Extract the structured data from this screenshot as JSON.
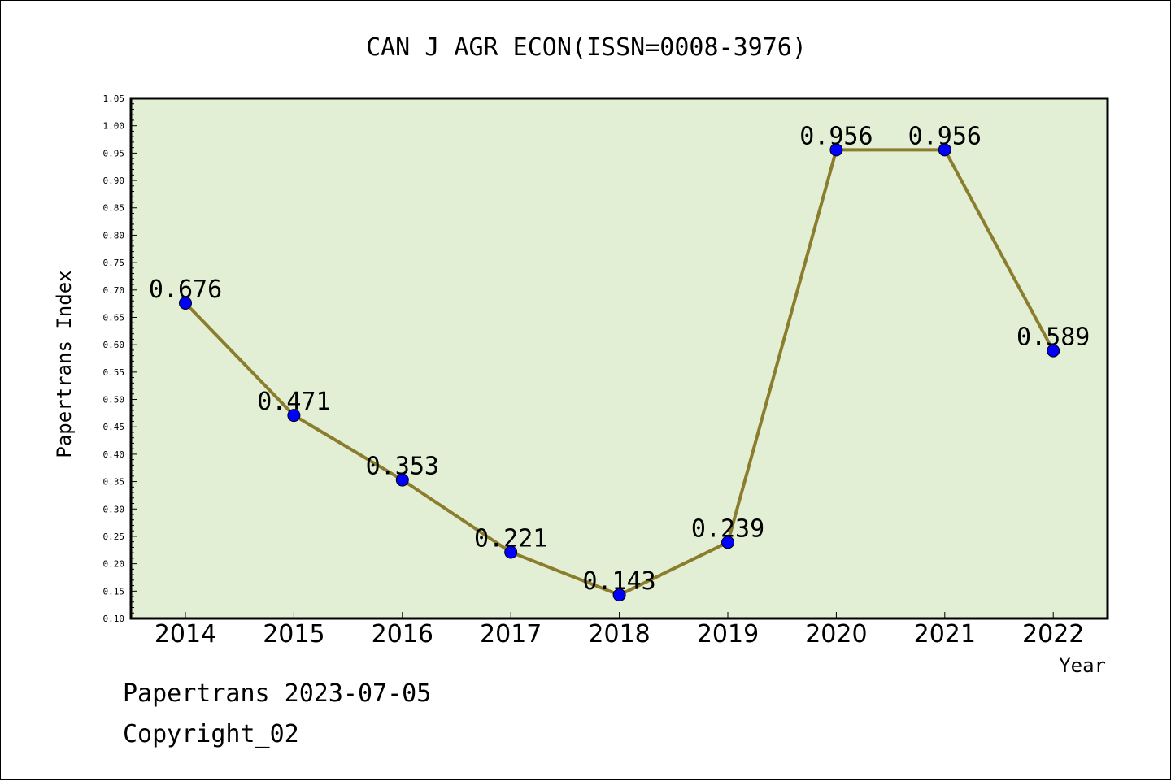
{
  "footer": {
    "line1": "Papertrans 2023-07-05",
    "line2": "Copyright_02"
  },
  "colors": {
    "plot_bg": "#e2efd5",
    "line": "#8b7d2e",
    "marker": "#0000ff",
    "text": "#000000"
  },
  "chart_data": {
    "type": "line",
    "title": "CAN J AGR ECON(ISSN=0008-3976)",
    "xlabel": "Year",
    "ylabel": "Papertrans Index",
    "categories": [
      "2014",
      "2015",
      "2016",
      "2017",
      "2018",
      "2019",
      "2020",
      "2021",
      "2022"
    ],
    "series": [
      {
        "values": [
          0.676,
          0.471,
          0.353,
          0.221,
          0.143,
          0.239,
          0.956,
          0.956,
          0.589
        ],
        "labels": [
          "0.676",
          "0.471",
          "0.353",
          "0.221",
          "0.143",
          "0.239",
          "0.956",
          "0.956",
          "0.589"
        ]
      }
    ],
    "ylim": [
      0.1,
      1.05
    ],
    "yticks": [
      "0.10",
      "0.15",
      "0.20",
      "0.25",
      "0.30",
      "0.35",
      "0.40",
      "0.45",
      "0.50",
      "0.55",
      "0.60",
      "0.65",
      "0.70",
      "0.75",
      "0.80",
      "0.85",
      "0.90",
      "0.95",
      "1.00",
      "1.05"
    ],
    "grid": false,
    "legend": "none"
  }
}
